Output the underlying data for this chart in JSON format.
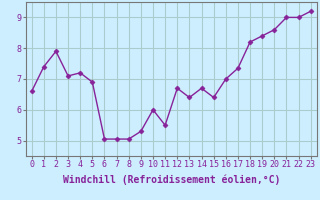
{
  "x": [
    0,
    1,
    2,
    3,
    4,
    5,
    6,
    7,
    8,
    9,
    10,
    11,
    12,
    13,
    14,
    15,
    16,
    17,
    18,
    19,
    20,
    21,
    22,
    23
  ],
  "y": [
    6.6,
    7.4,
    7.9,
    7.1,
    7.2,
    6.9,
    5.05,
    5.05,
    5.05,
    5.3,
    6.0,
    5.5,
    6.7,
    6.4,
    6.7,
    6.4,
    7.0,
    7.35,
    8.2,
    8.4,
    8.6,
    9.0,
    9.0,
    9.2
  ],
  "line_color": "#882299",
  "marker": "D",
  "marker_size": 2.5,
  "background_color": "#cceeff",
  "grid_color": "#aacccc",
  "xlabel": "Windchill (Refroidissement éolien,°C)",
  "ylabel": "",
  "ylim": [
    4.5,
    9.5
  ],
  "xlim": [
    -0.5,
    23.5
  ],
  "yticks": [
    5,
    6,
    7,
    8,
    9
  ],
  "xticks": [
    0,
    1,
    2,
    3,
    4,
    5,
    6,
    7,
    8,
    9,
    10,
    11,
    12,
    13,
    14,
    15,
    16,
    17,
    18,
    19,
    20,
    21,
    22,
    23
  ],
  "tick_label_fontsize": 6.0,
  "xlabel_fontsize": 7.0,
  "spine_color": "#777777"
}
